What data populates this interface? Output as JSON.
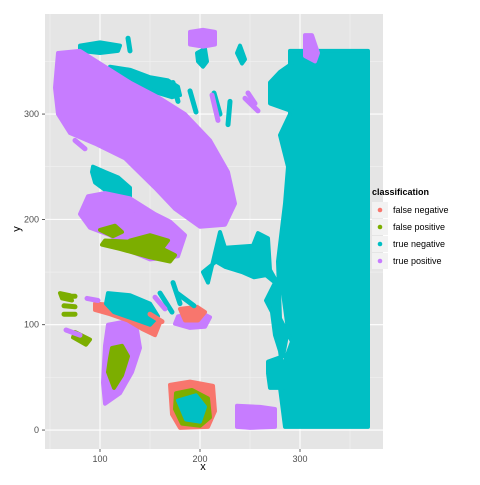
{
  "chart_data": {
    "type": "scatter",
    "title": "",
    "xlabel": "x",
    "ylabel": "y",
    "xlim": [
      45,
      383
    ],
    "ylim": [
      -18,
      395
    ],
    "x_ticks": [
      100,
      200,
      300
    ],
    "y_ticks": [
      0,
      100,
      200,
      300
    ],
    "grid": true,
    "background": "#e5e5e5",
    "legend": {
      "title": "classification",
      "placement": "right",
      "entries": [
        {
          "label": "false negative",
          "color": "#F8766D"
        },
        {
          "label": "false positive",
          "color": "#7CAE00"
        },
        {
          "label": "true negative",
          "color": "#00BFC4"
        },
        {
          "label": "true positive",
          "color": "#C77CFF"
        }
      ]
    },
    "regions": [
      {
        "class": "true negative",
        "points": [
          [
            290,
            360
          ],
          [
            368,
            360
          ],
          [
            368,
            3
          ],
          [
            285,
            3
          ],
          [
            280,
            40
          ],
          [
            268,
            55
          ],
          [
            268,
            65
          ],
          [
            283,
            70
          ],
          [
            288,
            95
          ],
          [
            283,
            130
          ],
          [
            270,
            152
          ],
          [
            268,
            182
          ],
          [
            258,
            187
          ],
          [
            253,
            175
          ],
          [
            225,
            173
          ],
          [
            220,
            188
          ],
          [
            208,
            140
          ],
          [
            203,
            150
          ],
          [
            216,
            160
          ],
          [
            225,
            155
          ],
          [
            242,
            150
          ],
          [
            254,
            145
          ],
          [
            266,
            147
          ],
          [
            275,
            140
          ],
          [
            266,
            123
          ],
          [
            272,
            112
          ],
          [
            275,
            90
          ],
          [
            280,
            75
          ],
          [
            285,
            40
          ],
          [
            270,
            40
          ],
          [
            268,
            54
          ],
          [
            282,
            58
          ],
          [
            292,
            84
          ],
          [
            280,
            106
          ],
          [
            278,
            160
          ],
          [
            285,
            215
          ],
          [
            288,
            250
          ],
          [
            280,
            280
          ],
          [
            290,
            300
          ],
          [
            290,
            320
          ]
        ]
      },
      {
        "class": "true negative",
        "points": [
          [
            270,
            310
          ],
          [
            300,
            300
          ],
          [
            320,
            310
          ],
          [
            328,
            320
          ],
          [
            320,
            340
          ],
          [
            295,
            350
          ],
          [
            280,
            340
          ],
          [
            270,
            330
          ]
        ]
      },
      {
        "class": "true negative",
        "points": [
          [
            80,
            365
          ],
          [
            100,
            368
          ],
          [
            120,
            365
          ],
          [
            118,
            360
          ],
          [
            100,
            358
          ],
          [
            80,
            360
          ]
        ]
      },
      {
        "class": "true negative",
        "points": [
          [
            110,
            345
          ],
          [
            130,
            342
          ],
          [
            150,
            335
          ],
          [
            168,
            332
          ],
          [
            178,
            326
          ],
          [
            180,
            318
          ],
          [
            172,
            316
          ],
          [
            158,
            320
          ],
          [
            140,
            328
          ],
          [
            120,
            335
          ],
          [
            110,
            340
          ]
        ]
      },
      {
        "class": "true negative",
        "points": [
          [
            93,
            250
          ],
          [
            105,
            245
          ],
          [
            118,
            240
          ],
          [
            130,
            230
          ],
          [
            130,
            222
          ],
          [
            118,
            225
          ],
          [
            105,
            228
          ],
          [
            95,
            235
          ],
          [
            92,
            245
          ]
        ]
      },
      {
        "class": "true negative",
        "points": [
          [
            197,
            358
          ],
          [
            205,
            362
          ],
          [
            207,
            350
          ],
          [
            203,
            345
          ],
          [
            198,
            350
          ]
        ]
      },
      {
        "class": "true negative",
        "points": [
          [
            240,
            365
          ],
          [
            245,
            352
          ],
          [
            242,
            348
          ],
          [
            237,
            358
          ]
        ]
      },
      {
        "class": "true positive",
        "points": [
          [
            190,
            378
          ],
          [
            203,
            380
          ],
          [
            215,
            378
          ],
          [
            215,
            366
          ],
          [
            203,
            364
          ],
          [
            190,
            366
          ]
        ]
      },
      {
        "class": "true positive",
        "points": [
          [
            58,
            358
          ],
          [
            80,
            360
          ],
          [
            105,
            345
          ],
          [
            130,
            330
          ],
          [
            160,
            315
          ],
          [
            185,
            300
          ],
          [
            210,
            275
          ],
          [
            228,
            245
          ],
          [
            235,
            215
          ],
          [
            225,
            195
          ],
          [
            200,
            193
          ],
          [
            175,
            210
          ],
          [
            155,
            230
          ],
          [
            125,
            258
          ],
          [
            95,
            272
          ],
          [
            70,
            282
          ],
          [
            58,
            300
          ],
          [
            55,
            325
          ]
        ]
      },
      {
        "class": "true positive",
        "points": [
          [
            88,
            222
          ],
          [
            105,
            225
          ],
          [
            130,
            220
          ],
          [
            155,
            205
          ],
          [
            170,
            198
          ],
          [
            185,
            185
          ],
          [
            178,
            165
          ],
          [
            150,
            162
          ],
          [
            130,
            170
          ],
          [
            110,
            185
          ],
          [
            90,
            192
          ],
          [
            80,
            205
          ]
        ]
      },
      {
        "class": "true positive",
        "points": [
          [
            108,
            100
          ],
          [
            125,
            103
          ],
          [
            137,
            95
          ],
          [
            140,
            78
          ],
          [
            132,
            55
          ],
          [
            120,
            35
          ],
          [
            105,
            25
          ],
          [
            103,
            45
          ],
          [
            105,
            80
          ]
        ]
      },
      {
        "class": "true positive",
        "points": [
          [
            237,
            23
          ],
          [
            260,
            22
          ],
          [
            275,
            20
          ],
          [
            275,
            3
          ],
          [
            250,
            2
          ],
          [
            237,
            3
          ]
        ]
      },
      {
        "class": "true positive",
        "points": [
          [
            305,
            375
          ],
          [
            312,
            375
          ],
          [
            318,
            358
          ],
          [
            315,
            350
          ],
          [
            305,
            355
          ]
        ]
      },
      {
        "class": "true positive",
        "points": [
          [
            178,
            108
          ],
          [
            200,
            112
          ],
          [
            210,
            107
          ],
          [
            205,
            98
          ],
          [
            190,
            97
          ],
          [
            175,
            101
          ]
        ]
      },
      {
        "class": "false positive",
        "points": [
          [
            100,
            190
          ],
          [
            113,
            184
          ],
          [
            122,
            188
          ],
          [
            115,
            194
          ]
        ]
      },
      {
        "class": "false positive",
        "points": [
          [
            130,
            180
          ],
          [
            140,
            170
          ],
          [
            160,
            170
          ],
          [
            168,
            180
          ],
          [
            150,
            185
          ]
        ]
      },
      {
        "class": "false positive",
        "points": [
          [
            60,
            130
          ],
          [
            70,
            128
          ],
          [
            72,
            123
          ],
          [
            62,
            125
          ]
        ]
      },
      {
        "class": "false positive",
        "points": [
          [
            75,
            93
          ],
          [
            90,
            86
          ],
          [
            86,
            81
          ],
          [
            73,
            88
          ]
        ]
      },
      {
        "class": "false negative",
        "points": [
          [
            95,
            120
          ],
          [
            110,
            119
          ],
          [
            125,
            115
          ],
          [
            140,
            104
          ],
          [
            150,
            112
          ],
          [
            160,
            102
          ],
          [
            155,
            90
          ],
          [
            142,
            96
          ],
          [
            128,
            104
          ],
          [
            110,
            110
          ],
          [
            95,
            114
          ]
        ]
      },
      {
        "class": "false negative",
        "points": [
          [
            170,
            43
          ],
          [
            190,
            46
          ],
          [
            213,
            42
          ],
          [
            215,
            18
          ],
          [
            208,
            3
          ],
          [
            180,
            2
          ],
          [
            172,
            15
          ]
        ]
      },
      {
        "class": "false negative",
        "points": [
          [
            180,
            115
          ],
          [
            197,
            117
          ],
          [
            205,
            112
          ],
          [
            198,
            104
          ],
          [
            185,
            104
          ]
        ]
      },
      {
        "class": "false positive",
        "points": [
          [
            176,
            35
          ],
          [
            192,
            38
          ],
          [
            208,
            30
          ],
          [
            210,
            12
          ],
          [
            200,
            4
          ],
          [
            182,
            6
          ],
          [
            175,
            20
          ]
        ]
      },
      {
        "class": "true negative",
        "points": [
          [
            178,
            28
          ],
          [
            196,
            33
          ],
          [
            205,
            22
          ],
          [
            200,
            8
          ],
          [
            186,
            10
          ]
        ]
      },
      {
        "class": "true negative",
        "points": [
          [
            108,
            130
          ],
          [
            130,
            128
          ],
          [
            150,
            120
          ],
          [
            158,
            108
          ],
          [
            150,
            100
          ],
          [
            132,
            106
          ],
          [
            114,
            112
          ],
          [
            106,
            120
          ]
        ]
      },
      {
        "class": "false positive",
        "points": [
          [
            112,
            78
          ],
          [
            122,
            80
          ],
          [
            128,
            70
          ],
          [
            122,
            52
          ],
          [
            114,
            40
          ],
          [
            108,
            55
          ],
          [
            110,
            68
          ]
        ]
      },
      {
        "class": "false positive",
        "points": [
          [
            105,
            180
          ],
          [
            150,
            178
          ],
          [
            175,
            166
          ],
          [
            170,
            160
          ],
          [
            150,
            164
          ],
          [
            120,
            172
          ],
          [
            102,
            176
          ]
        ]
      }
    ],
    "strokes": [
      {
        "class": "true negative",
        "points": [
          [
            128,
            372
          ],
          [
            130,
            360
          ]
        ]
      },
      {
        "class": "true negative",
        "points": [
          [
            173,
            330
          ],
          [
            178,
            312
          ]
        ]
      },
      {
        "class": "true negative",
        "points": [
          [
            190,
            322
          ],
          [
            196,
            302
          ]
        ]
      },
      {
        "class": "true negative",
        "points": [
          [
            214,
            320
          ],
          [
            220,
            300
          ]
        ]
      },
      {
        "class": "true negative",
        "points": [
          [
            230,
            312
          ],
          [
            228,
            290
          ]
        ]
      },
      {
        "class": "true positive",
        "points": [
          [
            212,
            318
          ],
          [
            218,
            294
          ]
        ]
      },
      {
        "class": "true positive",
        "points": [
          [
            248,
            320
          ],
          [
            255,
            310
          ]
        ]
      },
      {
        "class": "true positive",
        "points": [
          [
            245,
            315
          ],
          [
            258,
            303
          ]
        ]
      },
      {
        "class": "true positive",
        "points": [
          [
            75,
            275
          ],
          [
            85,
            267
          ]
        ]
      },
      {
        "class": "true positive",
        "points": [
          [
            130,
            212
          ],
          [
            138,
            207
          ]
        ]
      },
      {
        "class": "true positive",
        "points": [
          [
            87,
            125
          ],
          [
            98,
            123
          ]
        ]
      },
      {
        "class": "false positive",
        "points": [
          [
            64,
            127
          ],
          [
            75,
            127
          ]
        ]
      },
      {
        "class": "false positive",
        "points": [
          [
            64,
            118
          ],
          [
            75,
            117
          ]
        ]
      },
      {
        "class": "false positive",
        "points": [
          [
            64,
            110
          ],
          [
            75,
            110
          ]
        ]
      },
      {
        "class": "true positive",
        "points": [
          [
            66,
            95
          ],
          [
            80,
            90
          ]
        ]
      },
      {
        "class": "true negative",
        "points": [
          [
            160,
            130
          ],
          [
            172,
            112
          ]
        ]
      },
      {
        "class": "true negative",
        "points": [
          [
            173,
            140
          ],
          [
            180,
            120
          ]
        ]
      },
      {
        "class": "true negative",
        "points": [
          [
            177,
            130
          ],
          [
            194,
            118
          ]
        ]
      },
      {
        "class": "false negative",
        "points": [
          [
            150,
            110
          ],
          [
            162,
            103
          ]
        ]
      },
      {
        "class": "true positive",
        "points": [
          [
            155,
            126
          ],
          [
            165,
            115
          ]
        ]
      }
    ]
  }
}
